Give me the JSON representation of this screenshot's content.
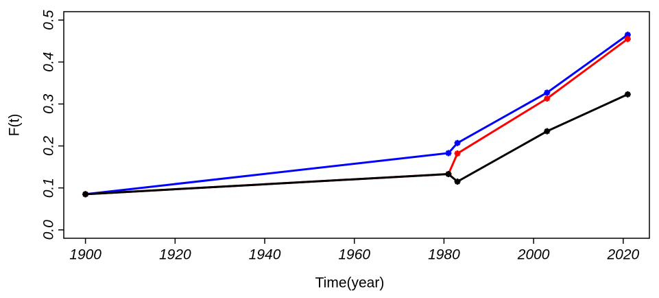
{
  "chart_data": {
    "type": "line",
    "xlabel": "Time(year)",
    "ylabel": "F(t)",
    "x": [
      1900,
      1981,
      1983,
      2003,
      2021
    ],
    "series": [
      {
        "color": "#0000ff",
        "values": [
          0.085,
          0.183,
          0.207,
          0.327,
          0.465
        ]
      },
      {
        "color": "#ff0000",
        "values": [
          0.085,
          0.133,
          0.182,
          0.313,
          0.455
        ]
      },
      {
        "color": "#000000",
        "values": [
          0.085,
          0.133,
          0.115,
          0.235,
          0.323
        ]
      }
    ],
    "xlim": [
      1895.16,
      2025.84
    ],
    "xticks": [
      1900,
      1920,
      1940,
      1960,
      1980,
      2000,
      2020
    ],
    "ylim": [
      -0.02,
      0.52
    ],
    "yticks": [
      0.0,
      0.1,
      0.2,
      0.3,
      0.4,
      0.5
    ],
    "grid": false
  }
}
